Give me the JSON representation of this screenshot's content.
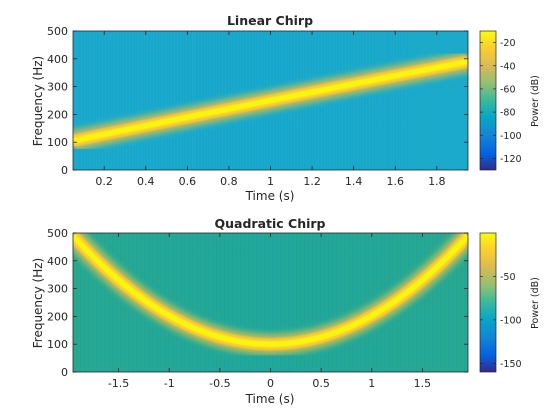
{
  "chart_data": [
    {
      "type": "heatmap",
      "title": "Linear Chirp",
      "xlabel": "Time (s)",
      "ylabel": "Frequency (Hz)",
      "xlim": [
        0.05,
        1.95
      ],
      "ylim": [
        0,
        500
      ],
      "x_ticks": [
        "0.2",
        "0.4",
        "0.6",
        "0.8",
        "1",
        "1.2",
        "1.4",
        "1.6",
        "1.8"
      ],
      "y_ticks": [
        "0",
        "100",
        "200",
        "300",
        "400",
        "500"
      ],
      "chirp": {
        "kind": "linear",
        "points": [
          [
            0.05,
            105
          ],
          [
            1.0,
            250
          ],
          [
            1.95,
            390
          ]
        ]
      },
      "colorbar": {
        "label": "Power (dB)",
        "range": [
          -130,
          -10
        ],
        "ticks": [
          "-20",
          "-40",
          "-60",
          "-80",
          "-100",
          "-120"
        ]
      },
      "grid": false
    },
    {
      "type": "heatmap",
      "title": "Quadratic Chirp",
      "xlabel": "Time (s)",
      "ylabel": "Frequency (Hz)",
      "xlim": [
        -1.95,
        1.95
      ],
      "ylim": [
        0,
        500
      ],
      "x_ticks": [
        "-1.5",
        "-1",
        "-0.5",
        "0",
        "0.5",
        "1",
        "1.5"
      ],
      "y_ticks": [
        "0",
        "100",
        "200",
        "300",
        "400",
        "500"
      ],
      "chirp": {
        "kind": "quadratic",
        "points": [
          [
            -1.95,
            490
          ],
          [
            0,
            100
          ],
          [
            1.95,
            490
          ]
        ]
      },
      "colorbar": {
        "label": "Power (dB)",
        "range": [
          -160,
          0
        ],
        "ticks": [
          "-50",
          "-100",
          "-150"
        ]
      },
      "grid": false
    }
  ]
}
